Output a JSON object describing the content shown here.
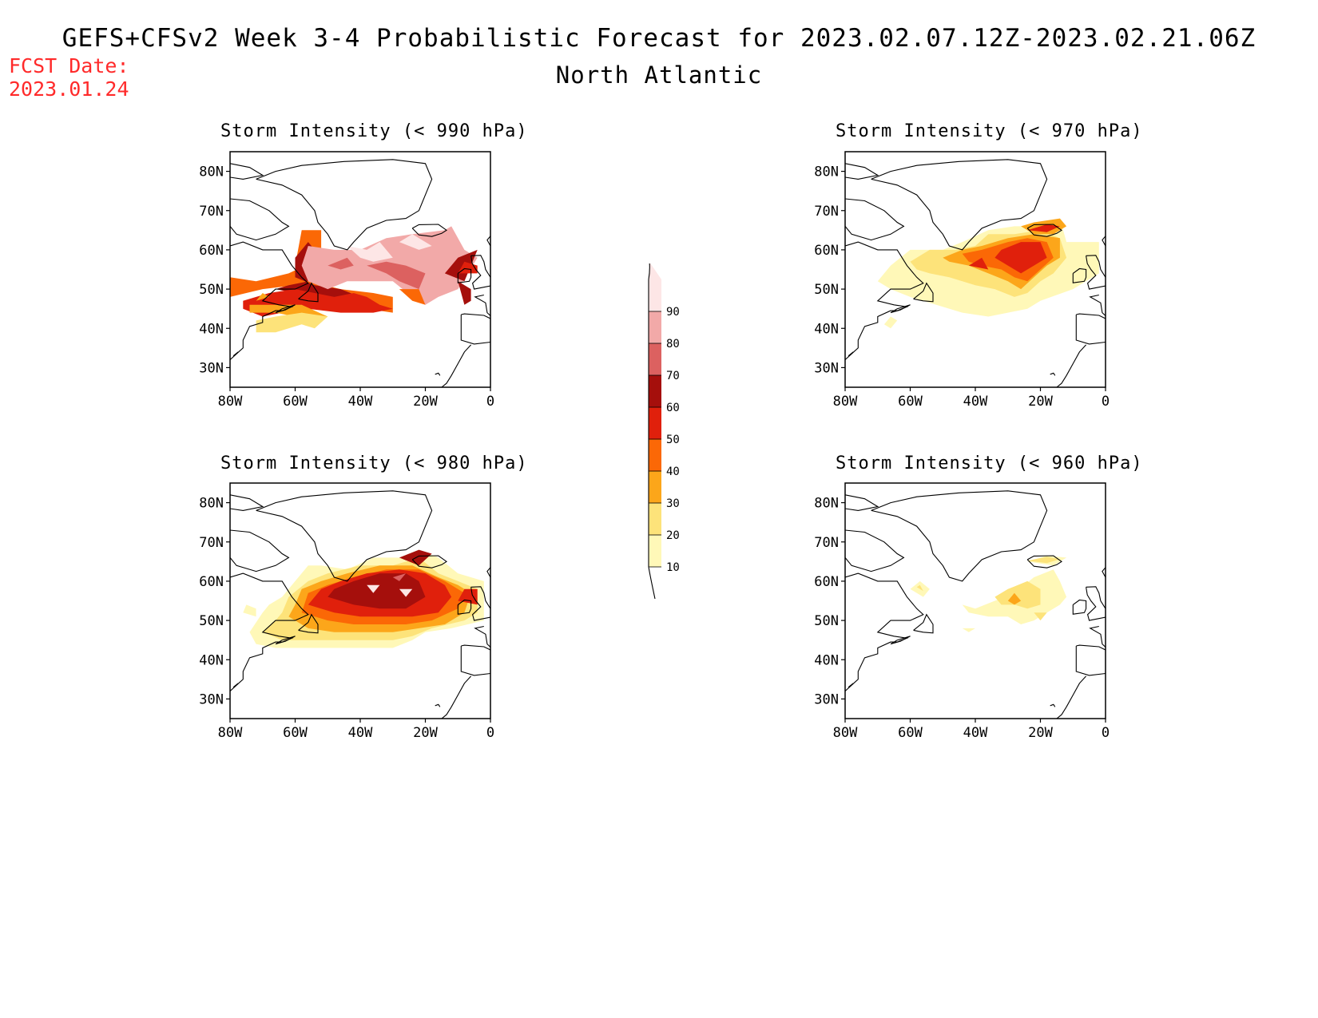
{
  "title": "GEFS+CFSv2 Week 3-4 Probabilistic Forecast for 2023.02.07.12Z-2023.02.21.06Z",
  "subtitle": "North Atlantic",
  "fcst_date_label": "FCST Date:",
  "fcst_date": "2023.01.24",
  "lat_labels": [
    "80N",
    "70N",
    "60N",
    "50N",
    "40N",
    "30N"
  ],
  "lon_labels": [
    "80W",
    "60W",
    "40W",
    "20W",
    "0"
  ],
  "panels": [
    {
      "id": "p990",
      "title": "Storm Intensity (< 990 hPa)"
    },
    {
      "id": "p970",
      "title": "Storm Intensity (< 970 hPa)"
    },
    {
      "id": "p980",
      "title": "Storm Intensity (< 980 hPa)"
    },
    {
      "id": "p960",
      "title": "Storm Intensity (< 960 hPa)"
    }
  ],
  "colorbar": {
    "levels": [
      10,
      20,
      30,
      40,
      50,
      60,
      70,
      80,
      90
    ],
    "labels": [
      "10",
      "20",
      "30",
      "40",
      "50",
      "60",
      "70",
      "80",
      "90"
    ],
    "colors": [
      "#fff8b8",
      "#fde37a",
      "#fca61a",
      "#fb6806",
      "#e0200c",
      "#a50f0c",
      "#dc6160",
      "#f2a9a8",
      "#fde6e6"
    ]
  },
  "palette": {
    "title_red": "#ff2a2a",
    "coast": "#000000"
  }
}
